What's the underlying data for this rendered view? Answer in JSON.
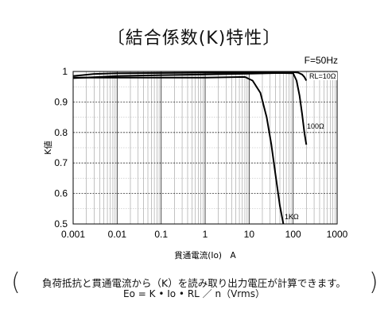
{
  "title": "〔結合係数(K)特性〕",
  "chart_data": {
    "type": "line",
    "annotation": "F=50Hz",
    "xlabel": "貫通電流(Io)　A",
    "ylabel": "K値",
    "xscale": "log",
    "xlim": [
      0.001,
      1000
    ],
    "ylim": [
      0.5,
      1.0
    ],
    "xticks": [
      0.001,
      0.01,
      0.1,
      1,
      10,
      100,
      1000
    ],
    "xtick_labels": [
      "0.001",
      "0.01",
      "0.1",
      "1",
      "10",
      "100",
      "1000"
    ],
    "yticks": [
      0.5,
      0.6,
      0.7,
      0.8,
      0.9,
      1.0
    ],
    "ytick_labels": [
      "0.5",
      "0.6",
      "0.7",
      "0.8",
      "0.9",
      "1"
    ],
    "grid": true,
    "series": [
      {
        "name": "RL=10Ω",
        "x": [
          0.001,
          0.003,
          0.01,
          0.1,
          1,
          10,
          50,
          100,
          130,
          160,
          180,
          200
        ],
        "y": [
          0.985,
          0.992,
          0.994,
          0.995,
          0.996,
          0.997,
          0.998,
          0.998,
          0.996,
          0.99,
          0.982,
          0.97
        ]
      },
      {
        "name": "100Ω",
        "x": [
          0.001,
          0.01,
          0.1,
          1,
          10,
          50,
          100,
          120,
          140,
          160,
          180,
          200
        ],
        "y": [
          0.978,
          0.985,
          0.988,
          0.99,
          0.993,
          0.995,
          0.994,
          0.97,
          0.92,
          0.86,
          0.8,
          0.76
        ]
      },
      {
        "name": "1KΩ",
        "x": [
          0.001,
          0.01,
          0.1,
          1,
          8,
          12,
          18,
          25,
          32,
          40,
          50,
          60
        ],
        "y": [
          0.98,
          0.98,
          0.98,
          0.98,
          0.982,
          0.97,
          0.93,
          0.85,
          0.76,
          0.66,
          0.56,
          0.5
        ]
      }
    ]
  },
  "caption_line1": "負荷抵抗と貫通電流から（K）を読み取り出力電圧が計算できます。",
  "caption_line2": "Eo = K • Io • RL ／ n（Vrms）"
}
